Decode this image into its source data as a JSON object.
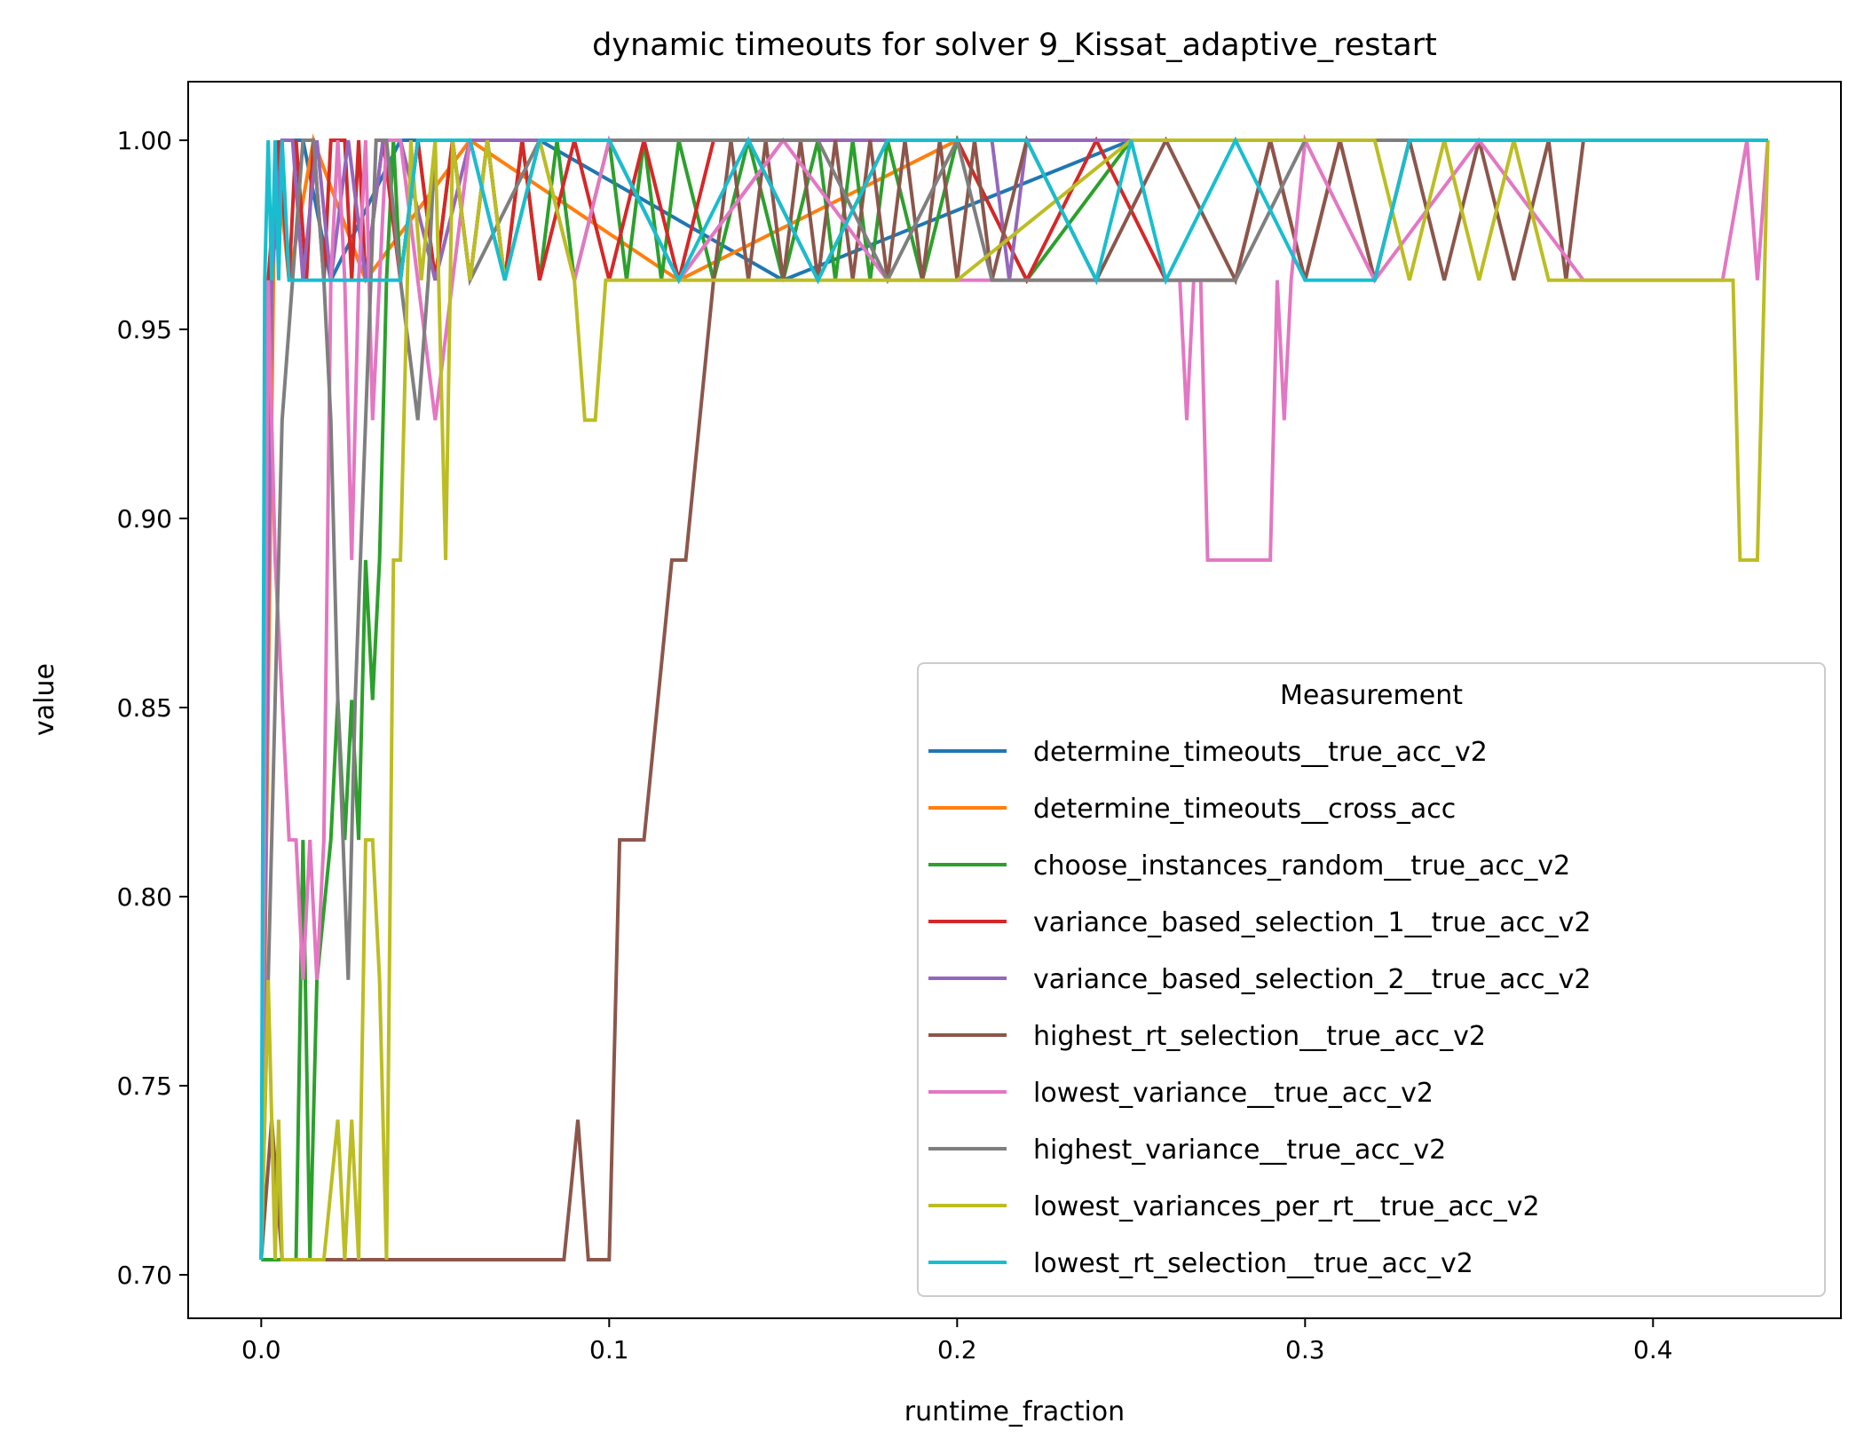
{
  "chart_data": {
    "type": "line",
    "title": "dynamic timeouts for solver 9_Kissat_adaptive_restart",
    "xlabel": "runtime_fraction",
    "ylabel": "value",
    "xlim": [
      -0.021,
      0.454
    ],
    "ylim": [
      0.6885,
      1.0155
    ],
    "xticks": [
      0.0,
      0.1,
      0.2,
      0.3,
      0.4
    ],
    "xtick_labels": [
      "0.0",
      "0.1",
      "0.2",
      "0.3",
      "0.4"
    ],
    "yticks": [
      0.7,
      0.75,
      0.8,
      0.85,
      0.9,
      0.95,
      1.0
    ],
    "ytick_labels": [
      "0.70",
      "0.75",
      "0.80",
      "0.85",
      "0.90",
      "0.95",
      "1.00"
    ],
    "grid": false,
    "legend": {
      "title": "Measurement",
      "placement": "lower-right"
    },
    "series": [
      {
        "name": "determine_timeouts__true_acc_v2",
        "color": "#1f77b4",
        "x": [
          0.0,
          0.003,
          0.006,
          0.012,
          0.02,
          0.04,
          0.08,
          0.15,
          0.25,
          0.35,
          0.433
        ],
        "y": [
          0.704,
          0.963,
          1.0,
          1.0,
          0.963,
          1.0,
          1.0,
          0.963,
          1.0,
          1.0,
          1.0
        ]
      },
      {
        "name": "determine_timeouts__cross_acc",
        "color": "#ff7f0e",
        "x": [
          0.0,
          0.004,
          0.008,
          0.015,
          0.03,
          0.06,
          0.12,
          0.2,
          0.3,
          0.4,
          0.433
        ],
        "y": [
          0.704,
          1.0,
          0.963,
          1.0,
          0.963,
          1.0,
          0.963,
          1.0,
          1.0,
          1.0,
          1.0
        ]
      },
      {
        "name": "choose_instances_random__true_acc_v2",
        "color": "#2ca02c",
        "x": [
          0.0,
          0.005,
          0.01,
          0.012,
          0.014,
          0.016,
          0.02,
          0.022,
          0.024,
          0.026,
          0.028,
          0.03,
          0.032,
          0.034,
          0.036,
          0.038,
          0.04,
          0.045,
          0.05,
          0.055,
          0.06,
          0.065,
          0.07,
          0.075,
          0.08,
          0.085,
          0.09,
          0.1,
          0.105,
          0.11,
          0.115,
          0.12,
          0.13,
          0.14,
          0.15,
          0.16,
          0.165,
          0.17,
          0.175,
          0.18,
          0.19,
          0.2,
          0.22,
          0.25,
          0.3,
          0.35,
          0.4,
          0.433
        ],
        "y": [
          0.704,
          0.704,
          0.704,
          0.815,
          0.704,
          0.778,
          0.815,
          0.852,
          0.815,
          0.852,
          0.815,
          0.889,
          0.852,
          0.889,
          0.963,
          1.0,
          0.963,
          1.0,
          0.963,
          1.0,
          0.963,
          1.0,
          0.963,
          1.0,
          0.963,
          1.0,
          0.963,
          1.0,
          0.963,
          1.0,
          0.963,
          1.0,
          0.963,
          1.0,
          0.963,
          1.0,
          0.963,
          1.0,
          0.963,
          1.0,
          0.963,
          1.0,
          0.963,
          1.0,
          1.0,
          1.0,
          1.0,
          1.0
        ]
      },
      {
        "name": "variance_based_selection_1__true_acc_v2",
        "color": "#d62728",
        "x": [
          0.0,
          0.002,
          0.005,
          0.008,
          0.01,
          0.013,
          0.015,
          0.018,
          0.02,
          0.024,
          0.026,
          0.028,
          0.03,
          0.035,
          0.04,
          0.045,
          0.05,
          0.055,
          0.06,
          0.065,
          0.07,
          0.075,
          0.08,
          0.09,
          0.1,
          0.11,
          0.12,
          0.13,
          0.14,
          0.16,
          0.18,
          0.2,
          0.22,
          0.24,
          0.26,
          0.28,
          0.29,
          0.3,
          0.31,
          0.32,
          0.33,
          0.35,
          0.4,
          0.433
        ],
        "y": [
          0.704,
          0.963,
          1.0,
          0.963,
          1.0,
          0.963,
          1.0,
          0.963,
          1.0,
          1.0,
          0.963,
          1.0,
          0.963,
          1.0,
          0.963,
          1.0,
          0.963,
          1.0,
          0.963,
          1.0,
          0.963,
          1.0,
          0.963,
          1.0,
          0.963,
          1.0,
          0.963,
          1.0,
          1.0,
          0.963,
          1.0,
          1.0,
          0.963,
          1.0,
          0.963,
          0.963,
          1.0,
          0.963,
          1.0,
          0.963,
          1.0,
          1.0,
          1.0,
          1.0
        ]
      },
      {
        "name": "variance_based_selection_2__true_acc_v2",
        "color": "#9467bd",
        "x": [
          0.0,
          0.003,
          0.006,
          0.009,
          0.012,
          0.016,
          0.02,
          0.025,
          0.03,
          0.035,
          0.04,
          0.05,
          0.06,
          0.08,
          0.1,
          0.12,
          0.15,
          0.18,
          0.21,
          0.215,
          0.22,
          0.25,
          0.3,
          0.35,
          0.4,
          0.433
        ],
        "y": [
          0.704,
          0.963,
          1.0,
          1.0,
          0.963,
          1.0,
          0.963,
          1.0,
          0.963,
          1.0,
          1.0,
          0.963,
          1.0,
          1.0,
          1.0,
          0.963,
          1.0,
          1.0,
          1.0,
          0.963,
          1.0,
          1.0,
          1.0,
          1.0,
          1.0,
          1.0
        ]
      },
      {
        "name": "highest_rt_selection__true_acc_v2",
        "color": "#8c564b",
        "x": [
          0.0,
          0.003,
          0.006,
          0.009,
          0.012,
          0.015,
          0.02,
          0.025,
          0.03,
          0.035,
          0.04,
          0.05,
          0.06,
          0.07,
          0.08,
          0.087,
          0.091,
          0.094,
          0.097,
          0.1,
          0.103,
          0.106,
          0.11,
          0.114,
          0.118,
          0.122,
          0.126,
          0.13,
          0.135,
          0.14,
          0.145,
          0.15,
          0.155,
          0.16,
          0.165,
          0.17,
          0.175,
          0.18,
          0.185,
          0.19,
          0.195,
          0.2,
          0.205,
          0.21,
          0.22,
          0.24,
          0.26,
          0.28,
          0.29,
          0.3,
          0.31,
          0.32,
          0.33,
          0.34,
          0.35,
          0.36,
          0.37,
          0.375,
          0.38,
          0.4,
          0.433
        ],
        "y": [
          0.704,
          0.741,
          0.704,
          0.704,
          0.704,
          0.704,
          0.704,
          0.704,
          0.704,
          0.704,
          0.704,
          0.704,
          0.704,
          0.704,
          0.704,
          0.704,
          0.741,
          0.704,
          0.704,
          0.704,
          0.815,
          0.815,
          0.815,
          0.852,
          0.889,
          0.889,
          0.926,
          0.963,
          1.0,
          0.963,
          1.0,
          0.963,
          1.0,
          0.963,
          1.0,
          0.963,
          1.0,
          0.963,
          1.0,
          0.963,
          1.0,
          0.963,
          1.0,
          0.963,
          1.0,
          0.963,
          1.0,
          0.963,
          1.0,
          0.963,
          1.0,
          0.963,
          1.0,
          0.963,
          1.0,
          0.963,
          1.0,
          0.963,
          1.0,
          1.0,
          1.0
        ]
      },
      {
        "name": "lowest_variance__true_acc_v2",
        "color": "#e377c2",
        "x": [
          0.0,
          0.002,
          0.004,
          0.006,
          0.008,
          0.01,
          0.012,
          0.014,
          0.016,
          0.018,
          0.02,
          0.022,
          0.024,
          0.026,
          0.028,
          0.03,
          0.032,
          0.034,
          0.036,
          0.04,
          0.045,
          0.05,
          0.055,
          0.06,
          0.07,
          0.08,
          0.09,
          0.1,
          0.12,
          0.15,
          0.18,
          0.2,
          0.22,
          0.24,
          0.26,
          0.264,
          0.266,
          0.268,
          0.27,
          0.272,
          0.275,
          0.28,
          0.285,
          0.29,
          0.292,
          0.294,
          0.296,
          0.3,
          0.32,
          0.35,
          0.38,
          0.4,
          0.42,
          0.427,
          0.43,
          0.433
        ],
        "y": [
          0.704,
          0.963,
          0.889,
          0.852,
          0.815,
          0.815,
          0.778,
          0.815,
          0.778,
          0.815,
          0.963,
          1.0,
          0.963,
          0.889,
          0.963,
          1.0,
          0.926,
          0.963,
          1.0,
          1.0,
          0.963,
          0.926,
          0.963,
          1.0,
          0.963,
          1.0,
          0.963,
          1.0,
          0.963,
          1.0,
          0.963,
          0.963,
          0.963,
          0.963,
          0.963,
          0.963,
          0.926,
          0.963,
          0.963,
          0.889,
          0.889,
          0.889,
          0.889,
          0.889,
          0.963,
          0.926,
          0.963,
          1.0,
          0.963,
          1.0,
          0.963,
          0.963,
          0.963,
          1.0,
          0.963,
          1.0
        ]
      },
      {
        "name": "highest_variance__true_acc_v2",
        "color": "#7f7f7f",
        "x": [
          0.0,
          0.003,
          0.006,
          0.009,
          0.012,
          0.015,
          0.018,
          0.02,
          0.022,
          0.025,
          0.027,
          0.03,
          0.033,
          0.036,
          0.04,
          0.045,
          0.048,
          0.05,
          0.055,
          0.06,
          0.08,
          0.1,
          0.12,
          0.14,
          0.16,
          0.18,
          0.2,
          0.21,
          0.22,
          0.25,
          0.28,
          0.3,
          0.32,
          0.35,
          0.4,
          0.433
        ],
        "y": [
          0.704,
          0.815,
          0.926,
          0.963,
          1.0,
          1.0,
          0.963,
          0.926,
          0.852,
          0.778,
          0.852,
          0.926,
          1.0,
          1.0,
          0.963,
          0.926,
          0.963,
          1.0,
          1.0,
          0.963,
          1.0,
          1.0,
          1.0,
          1.0,
          1.0,
          0.963,
          1.0,
          0.963,
          0.963,
          0.963,
          0.963,
          1.0,
          1.0,
          1.0,
          1.0,
          1.0
        ]
      },
      {
        "name": "lowest_variances_per_rt__true_acc_v2",
        "color": "#bcbd22",
        "x": [
          0.0,
          0.002,
          0.004,
          0.005,
          0.006,
          0.008,
          0.01,
          0.014,
          0.018,
          0.022,
          0.024,
          0.026,
          0.028,
          0.03,
          0.032,
          0.034,
          0.036,
          0.038,
          0.04,
          0.043,
          0.046,
          0.05,
          0.053,
          0.055,
          0.06,
          0.065,
          0.07,
          0.08,
          0.09,
          0.093,
          0.096,
          0.099,
          0.1,
          0.11,
          0.13,
          0.15,
          0.2,
          0.25,
          0.3,
          0.32,
          0.33,
          0.34,
          0.35,
          0.36,
          0.37,
          0.38,
          0.4,
          0.42,
          0.423,
          0.425,
          0.43,
          0.433
        ],
        "y": [
          0.704,
          0.778,
          0.704,
          0.741,
          0.704,
          0.704,
          0.704,
          0.704,
          0.704,
          0.741,
          0.704,
          0.741,
          0.704,
          0.815,
          0.815,
          0.778,
          0.704,
          0.889,
          0.889,
          1.0,
          0.963,
          1.0,
          0.889,
          1.0,
          0.963,
          1.0,
          0.963,
          1.0,
          0.963,
          0.926,
          0.926,
          0.963,
          0.963,
          0.963,
          0.963,
          0.963,
          0.963,
          1.0,
          1.0,
          1.0,
          0.963,
          1.0,
          0.963,
          1.0,
          0.963,
          0.963,
          0.963,
          0.963,
          0.963,
          0.889,
          0.889,
          1.0
        ]
      },
      {
        "name": "lowest_rt_selection__true_acc_v2",
        "color": "#17becf",
        "x": [
          0.0,
          0.001,
          0.002,
          0.003,
          0.004,
          0.005,
          0.006,
          0.008,
          0.01,
          0.015,
          0.02,
          0.03,
          0.04,
          0.045,
          0.06,
          0.07,
          0.08,
          0.1,
          0.12,
          0.14,
          0.16,
          0.18,
          0.2,
          0.22,
          0.24,
          0.25,
          0.26,
          0.28,
          0.3,
          0.32,
          0.33,
          0.35,
          0.4,
          0.433
        ],
        "y": [
          0.704,
          0.963,
          1.0,
          0.963,
          1.0,
          0.963,
          1.0,
          0.963,
          0.963,
          0.963,
          0.963,
          0.963,
          0.963,
          1.0,
          1.0,
          0.963,
          1.0,
          1.0,
          0.963,
          1.0,
          0.963,
          1.0,
          1.0,
          1.0,
          0.963,
          1.0,
          0.963,
          1.0,
          0.963,
          0.963,
          1.0,
          1.0,
          1.0,
          1.0
        ]
      }
    ]
  }
}
